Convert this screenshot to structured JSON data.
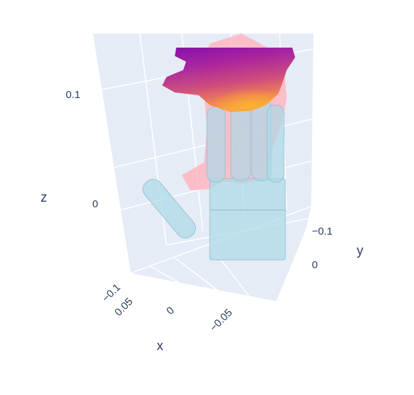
{
  "chart_data": {
    "type": "scatter3d",
    "title": "",
    "axes": {
      "x": {
        "label": "x",
        "ticks": [
          "0.05",
          "0",
          "−0.05"
        ],
        "tick_values": [
          0.05,
          0,
          -0.05
        ]
      },
      "y": {
        "label": "y",
        "ticks": [
          "−0.1",
          "0"
        ],
        "tick_values": [
          -0.1,
          0
        ]
      },
      "z": {
        "label": "z",
        "ticks": [
          "0.1",
          "0"
        ],
        "tick_values": [
          0.1,
          0
        ]
      },
      "corner_tick": "−0.1"
    },
    "scene_background": "#e5ecf6",
    "grid_color": "#ffffff",
    "layers": [
      {
        "name": "hand-mesh",
        "kind": "mesh",
        "color": "#add8e6",
        "opacity": 0.7
      },
      {
        "name": "pink-point-cloud",
        "kind": "points",
        "color": "#ffb6c1",
        "opacity": 0.8
      },
      {
        "name": "colored-point-cloud",
        "kind": "points",
        "colorscale": "Plasma",
        "colorscale_colors": [
          "#0d0887",
          "#7e03a8",
          "#cc4778",
          "#f89540",
          "#f0f921"
        ]
      }
    ]
  }
}
